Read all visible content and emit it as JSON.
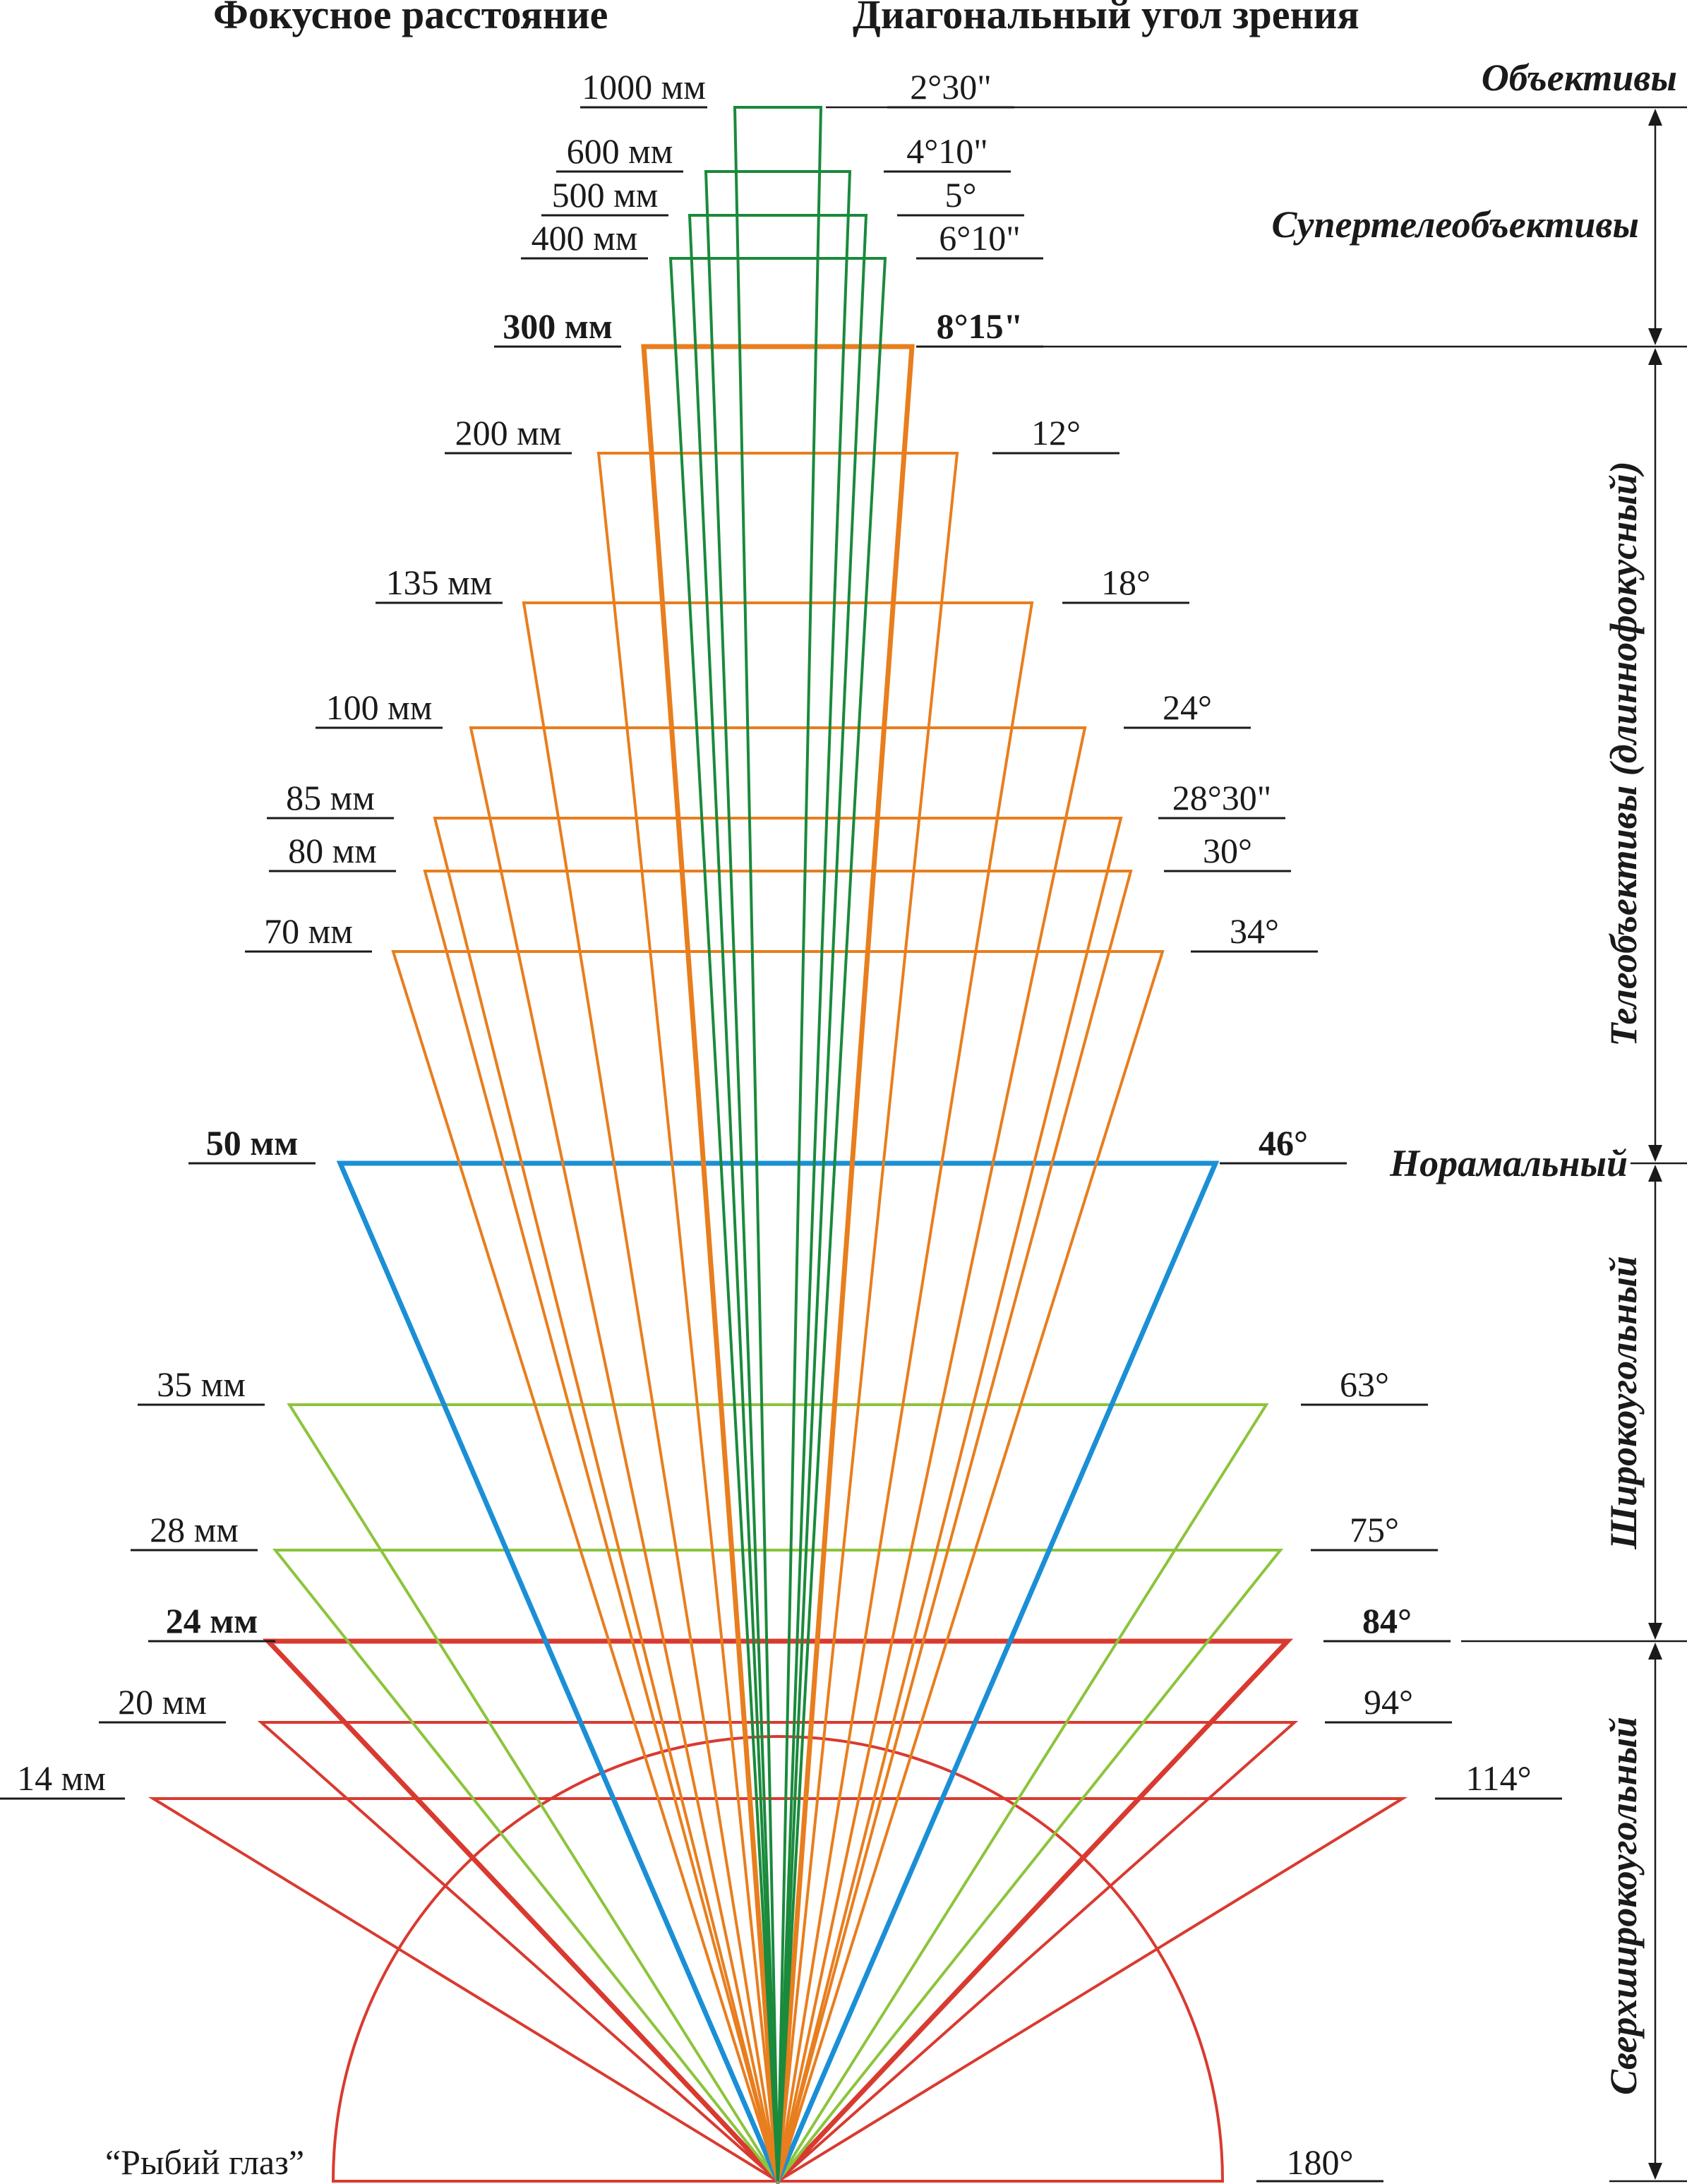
{
  "headers": {
    "focal_length": "Фокусное расстояние",
    "view_angle": "Диагональный угол зрения"
  },
  "colors": {
    "supertele": "#1a8a3c",
    "tele": "#e87e1e",
    "normal": "#1b8fd6",
    "wide": "#8cc43c",
    "ultrawide": "#d93a30",
    "text": "#1a1a1a"
  },
  "categories": {
    "lenses": "Объективы",
    "supertele": "Супертелеобъективы",
    "tele": "Телеобъективы (длиннофокусный)",
    "normal": "Норамальный",
    "wide": "Широкоугольный",
    "ultrawide": "Сверхширокоугольный"
  },
  "lenses": [
    {
      "focal": "1000 мм",
      "angle": "2°30\"",
      "group": "supertele",
      "bold": false
    },
    {
      "focal": "600 мм",
      "angle": "4°10\"",
      "group": "supertele",
      "bold": false
    },
    {
      "focal": "500 мм",
      "angle": "5°",
      "group": "supertele",
      "bold": false
    },
    {
      "focal": "400 мм",
      "angle": "6°10\"",
      "group": "supertele",
      "bold": false
    },
    {
      "focal": "300 мм",
      "angle": "8°15\"",
      "group": "tele",
      "bold": true
    },
    {
      "focal": "200 мм",
      "angle": "12°",
      "group": "tele",
      "bold": false
    },
    {
      "focal": "135 мм",
      "angle": "18°",
      "group": "tele",
      "bold": false
    },
    {
      "focal": "100 мм",
      "angle": "24°",
      "group": "tele",
      "bold": false
    },
    {
      "focal": "85 мм",
      "angle": "28°30\"",
      "group": "tele",
      "bold": false
    },
    {
      "focal": "80 мм",
      "angle": "30°",
      "group": "tele",
      "bold": false
    },
    {
      "focal": "70 мм",
      "angle": "34°",
      "group": "tele",
      "bold": false
    },
    {
      "focal": "50 мм",
      "angle": "46°",
      "group": "normal",
      "bold": true
    },
    {
      "focal": "35 мм",
      "angle": "63°",
      "group": "wide",
      "bold": false
    },
    {
      "focal": "28 мм",
      "angle": "75°",
      "group": "wide",
      "bold": false
    },
    {
      "focal": "24 мм",
      "angle": "84°",
      "group": "ultrawide",
      "bold": true
    },
    {
      "focal": "20 мм",
      "angle": "94°",
      "group": "ultrawide",
      "bold": false
    },
    {
      "focal": "14 мм",
      "angle": "114°",
      "group": "ultrawide",
      "bold": false
    }
  ],
  "fisheye": {
    "label": "“Рыбий глаз”",
    "angle": "180°",
    "group": "ultrawide"
  }
}
